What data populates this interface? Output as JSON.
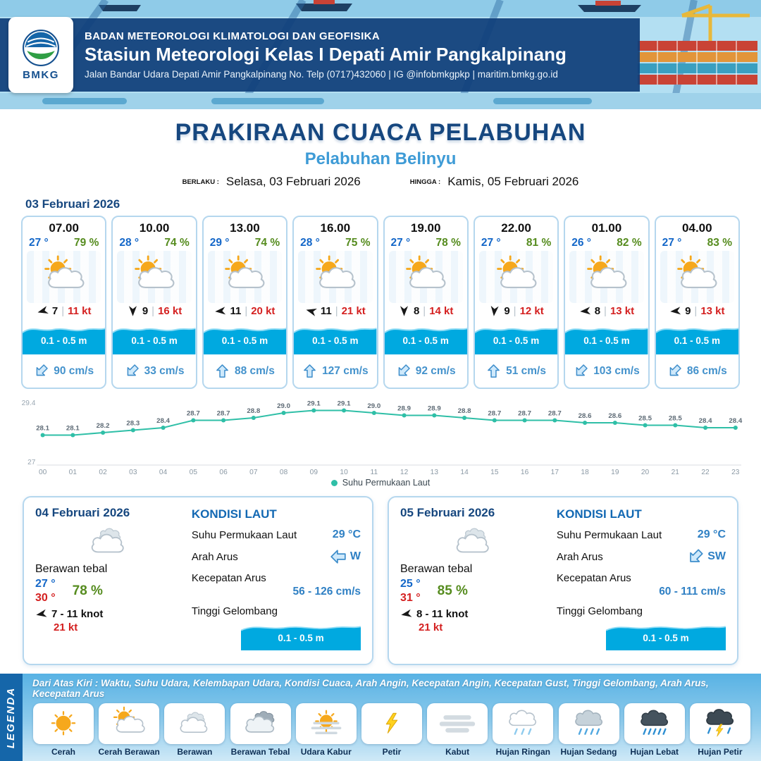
{
  "header": {
    "agency": "BADAN METEOROLOGI KLIMATOLOGI DAN GEOFISIKA",
    "station": "Stasiun Meteorologi Kelas I Depati Amir Pangkalpinang",
    "address": "Jalan Bandar Udara Depati Amir Pangkalpinang No. Telp (0717)432060 | IG @infobmkgpkp | maritim.bmkg.go.id",
    "logo_text": "BMKG"
  },
  "title": {
    "main": "PRAKIRAAN CUACA PELABUHAN",
    "port": "Pelabuhan Belinyu",
    "berlaku_label": "BERLAKU :",
    "berlaku_value": "Selasa, 03 Februari 2026",
    "hingga_label": "HINGGA :",
    "hingga_value": "Kamis, 05 Februari 2026"
  },
  "labels": {
    "wind_sep": "|",
    "kondisi_laut": "KONDISI LAUT",
    "sst": "Suhu Permukaan Laut",
    "arah_arus": "Arah Arus",
    "kecepatan_arus": "Kecepatan Arus",
    "tinggi_gelombang": "Tinggi Gelombang"
  },
  "forecast": {
    "date": "03 Februari 2026",
    "cards": [
      {
        "time": "07.00",
        "temp": "27 °",
        "rh": "79 %",
        "icon": "sun-cloud",
        "wind_val": "7",
        "wind_kt": "11 kt",
        "wind_deg": 255,
        "wave": "0.1 - 0.5 m",
        "current": "90 cm/s",
        "current_deg": 225
      },
      {
        "time": "10.00",
        "temp": "28 °",
        "rh": "74 %",
        "icon": "sun-cloud",
        "wind_val": "9",
        "wind_kt": "16 kt",
        "wind_deg": 180,
        "wave": "0.1 - 0.5 m",
        "current": "33 cm/s",
        "current_deg": 225
      },
      {
        "time": "13.00",
        "temp": "29 °",
        "rh": "74 %",
        "icon": "sun-cloud",
        "wind_val": "11",
        "wind_kt": "20 kt",
        "wind_deg": 265,
        "wave": "0.1 - 0.5 m",
        "current": "88 cm/s",
        "current_deg": 0
      },
      {
        "time": "16.00",
        "temp": "28 °",
        "rh": "75 %",
        "icon": "sun-cloud",
        "wind_val": "11",
        "wind_kt": "21 kt",
        "wind_deg": 285,
        "wave": "0.1 - 0.5 m",
        "current": "127 cm/s",
        "current_deg": 0
      },
      {
        "time": "19.00",
        "temp": "27 °",
        "rh": "78 %",
        "icon": "sun-cloud",
        "wind_val": "8",
        "wind_kt": "14 kt",
        "wind_deg": 180,
        "wave": "0.1 - 0.5 m",
        "current": "92 cm/s",
        "current_deg": 225
      },
      {
        "time": "22.00",
        "temp": "27 °",
        "rh": "81 %",
        "icon": "sun-cloud",
        "wind_val": "9",
        "wind_kt": "12 kt",
        "wind_deg": 185,
        "wave": "0.1 - 0.5 m",
        "current": "51 cm/s",
        "current_deg": 0
      },
      {
        "time": "01.00",
        "temp": "26 °",
        "rh": "82 %",
        "icon": "sun-cloud",
        "wind_val": "8",
        "wind_kt": "13 kt",
        "wind_deg": 265,
        "wave": "0.1 - 0.5 m",
        "current": "103 cm/s",
        "current_deg": 225
      },
      {
        "time": "04.00",
        "temp": "27 °",
        "rh": "83 %",
        "icon": "sun-cloud",
        "wind_val": "9",
        "wind_kt": "13 kt",
        "wind_deg": 265,
        "wave": "0.1 - 0.5 m",
        "current": "86 cm/s",
        "current_deg": 225
      }
    ]
  },
  "chart_data": {
    "type": "line",
    "x": [
      "00",
      "01",
      "02",
      "03",
      "04",
      "05",
      "06",
      "07",
      "08",
      "09",
      "10",
      "11",
      "12",
      "13",
      "14",
      "15",
      "16",
      "17",
      "18",
      "19",
      "20",
      "21",
      "22",
      "23"
    ],
    "values": [
      28.1,
      28.1,
      28.2,
      28.3,
      28.4,
      28.7,
      28.7,
      28.8,
      29.0,
      29.1,
      29.1,
      29.0,
      28.9,
      28.9,
      28.8,
      28.7,
      28.7,
      28.7,
      28.6,
      28.6,
      28.5,
      28.5,
      28.4,
      28.4
    ],
    "ylim": [
      27,
      29.4
    ],
    "line_color": "#2fbfa7",
    "legend": "Suhu Permukaan Laut",
    "legend_position": "bottom",
    "grid": false
  },
  "days": [
    {
      "date": "04 Februari 2026",
      "icon": "cloud",
      "condition": "Berawan tebal",
      "temp_min": "27 °",
      "temp_max": "30 °",
      "rh": "78 %",
      "wind": "7 - 11 knot",
      "gust": "21 kt",
      "wind_deg": 260,
      "sst": "29 °C",
      "current_dir": "W",
      "current_deg": 270,
      "current_speed": "56 - 126 cm/s",
      "wave": "0.1 - 0.5 m"
    },
    {
      "date": "05 Februari 2026",
      "icon": "cloud",
      "condition": "Berawan tebal",
      "temp_min": "25 °",
      "temp_max": "31 °",
      "rh": "85 %",
      "wind": "8 - 11 knot",
      "gust": "21 kt",
      "wind_deg": 260,
      "sst": "29 °C",
      "current_dir": "SW",
      "current_deg": 225,
      "current_speed": "60 - 111 cm/s",
      "wave": "0.1 - 0.5 m"
    }
  ],
  "legend": {
    "title": "LEGENDA",
    "note": "Dari Atas Kiri : Waktu, Suhu Udara, Kelembapan Udara, Kondisi Cuaca, Arah Angin, Kecepatan Angin, Kecepatan Gust, Tinggi Gelombang, Arah Arus, Kecepatan Arus",
    "items": [
      {
        "label": "Cerah",
        "icon": "sun"
      },
      {
        "label": "Cerah Berawan",
        "icon": "sun-cloud"
      },
      {
        "label": "Berawan",
        "icon": "cloud"
      },
      {
        "label": "Berawan Tebal",
        "icon": "cloud-thick"
      },
      {
        "label": "Udara Kabur",
        "icon": "haze"
      },
      {
        "label": "Petir",
        "icon": "lightning"
      },
      {
        "label": "Kabut",
        "icon": "fog"
      },
      {
        "label": "Hujan Ringan",
        "icon": "rain-light"
      },
      {
        "label": "Hujan Sedang",
        "icon": "rain-medium"
      },
      {
        "label": "Hujan Lebat",
        "icon": "rain-heavy"
      },
      {
        "label": "Hujan Petir",
        "icon": "storm"
      }
    ]
  }
}
